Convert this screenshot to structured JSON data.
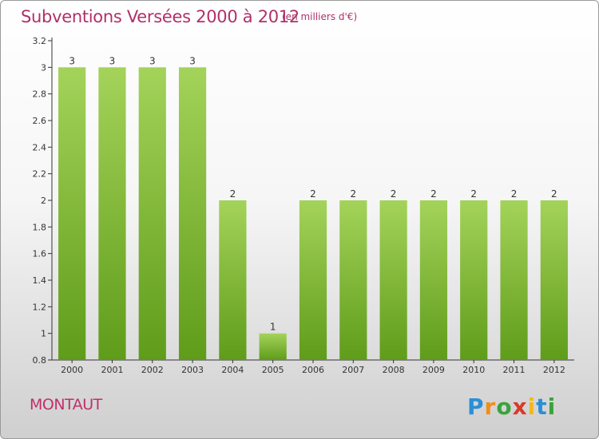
{
  "title": "Subventions Versées 2000 à 2012",
  "subtitle": "(en milliers d'€)",
  "place": "MONTAUT",
  "logo_text": "Proxiti",
  "colors": {
    "title": "#b0306a",
    "bar_top": "#a4d35a",
    "bar_bottom": "#5f9c1a",
    "axis": "#333333"
  },
  "chart_data": {
    "type": "bar",
    "title": "Subventions Versées 2000 à 2012",
    "subtitle": "(en milliers d'€)",
    "categories": [
      "2000",
      "2001",
      "2002",
      "2003",
      "2004",
      "2005",
      "2006",
      "2007",
      "2008",
      "2009",
      "2010",
      "2011",
      "2012"
    ],
    "values": [
      3,
      3,
      3,
      3,
      2,
      1,
      2,
      2,
      2,
      2,
      2,
      2,
      2
    ],
    "data_labels": [
      "3",
      "3",
      "3",
      "3",
      "2",
      "1",
      "2",
      "2",
      "2",
      "2",
      "2",
      "2",
      "2"
    ],
    "ylim": [
      0.8,
      3.2
    ],
    "yticks": [
      0.8,
      1,
      1.2,
      1.4,
      1.6,
      1.8,
      2,
      2.2,
      2.4,
      2.6,
      2.8,
      3,
      3.2
    ],
    "ytick_labels": [
      "0.8",
      "1",
      "1.2",
      "1.4",
      "1.6",
      "1.8",
      "2",
      "2.2",
      "2.4",
      "2.6",
      "2.8",
      "3",
      "3.2"
    ],
    "grid": false,
    "legend": "none"
  }
}
